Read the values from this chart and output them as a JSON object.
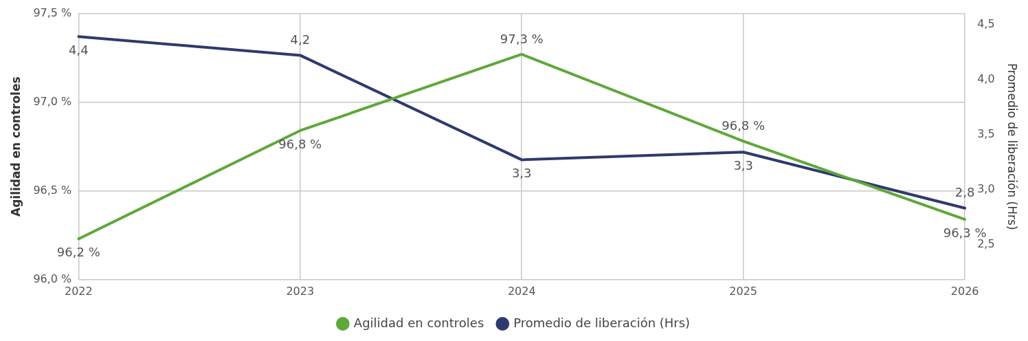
{
  "chart_data": {
    "type": "line",
    "categories": [
      "2022",
      "2023",
      "2024",
      "2025",
      "2026"
    ],
    "series": [
      {
        "name": "Agilidad en controles",
        "color": "#5ea83a",
        "values": [
          96.23,
          96.84,
          97.27,
          96.78,
          96.34
        ],
        "value_labels": [
          "96,2 %",
          "96,8 %",
          "97,3 %",
          "96,8 %",
          "96,3 %"
        ]
      },
      {
        "name": "Promedio de liberación (Hrs)",
        "color": "#2e3a6e",
        "axis": "y2",
        "values": [
          4.39,
          4.22,
          3.27,
          3.34,
          2.83
        ],
        "value_labels": [
          "4,4",
          "4,2",
          "3,3",
          "3,3",
          "2,8"
        ]
      }
    ],
    "ylabel": "Agilidad en controles",
    "y2label": "Promedio de liberación (Hrs)",
    "ylim": [
      96.0,
      97.5
    ],
    "yticks": [
      {
        "value": 96.0,
        "label": "96,0 %"
      },
      {
        "value": 96.5,
        "label": "96,5 %"
      },
      {
        "value": 97.0,
        "label": "97,0 %"
      },
      {
        "value": 97.5,
        "label": "97,5 %"
      }
    ],
    "y2lim": [
      2.18,
      4.6
    ],
    "y2ticks": [
      {
        "value": 2.5,
        "label": "2,5"
      },
      {
        "value": 3.0,
        "label": "3,0"
      },
      {
        "value": 3.5,
        "label": "3,5"
      },
      {
        "value": 4.0,
        "label": "4,0"
      },
      {
        "value": 4.5,
        "label": "4,5"
      }
    ],
    "grid": true,
    "legend": "bottom",
    "marker": "none",
    "line_style": "solid"
  }
}
